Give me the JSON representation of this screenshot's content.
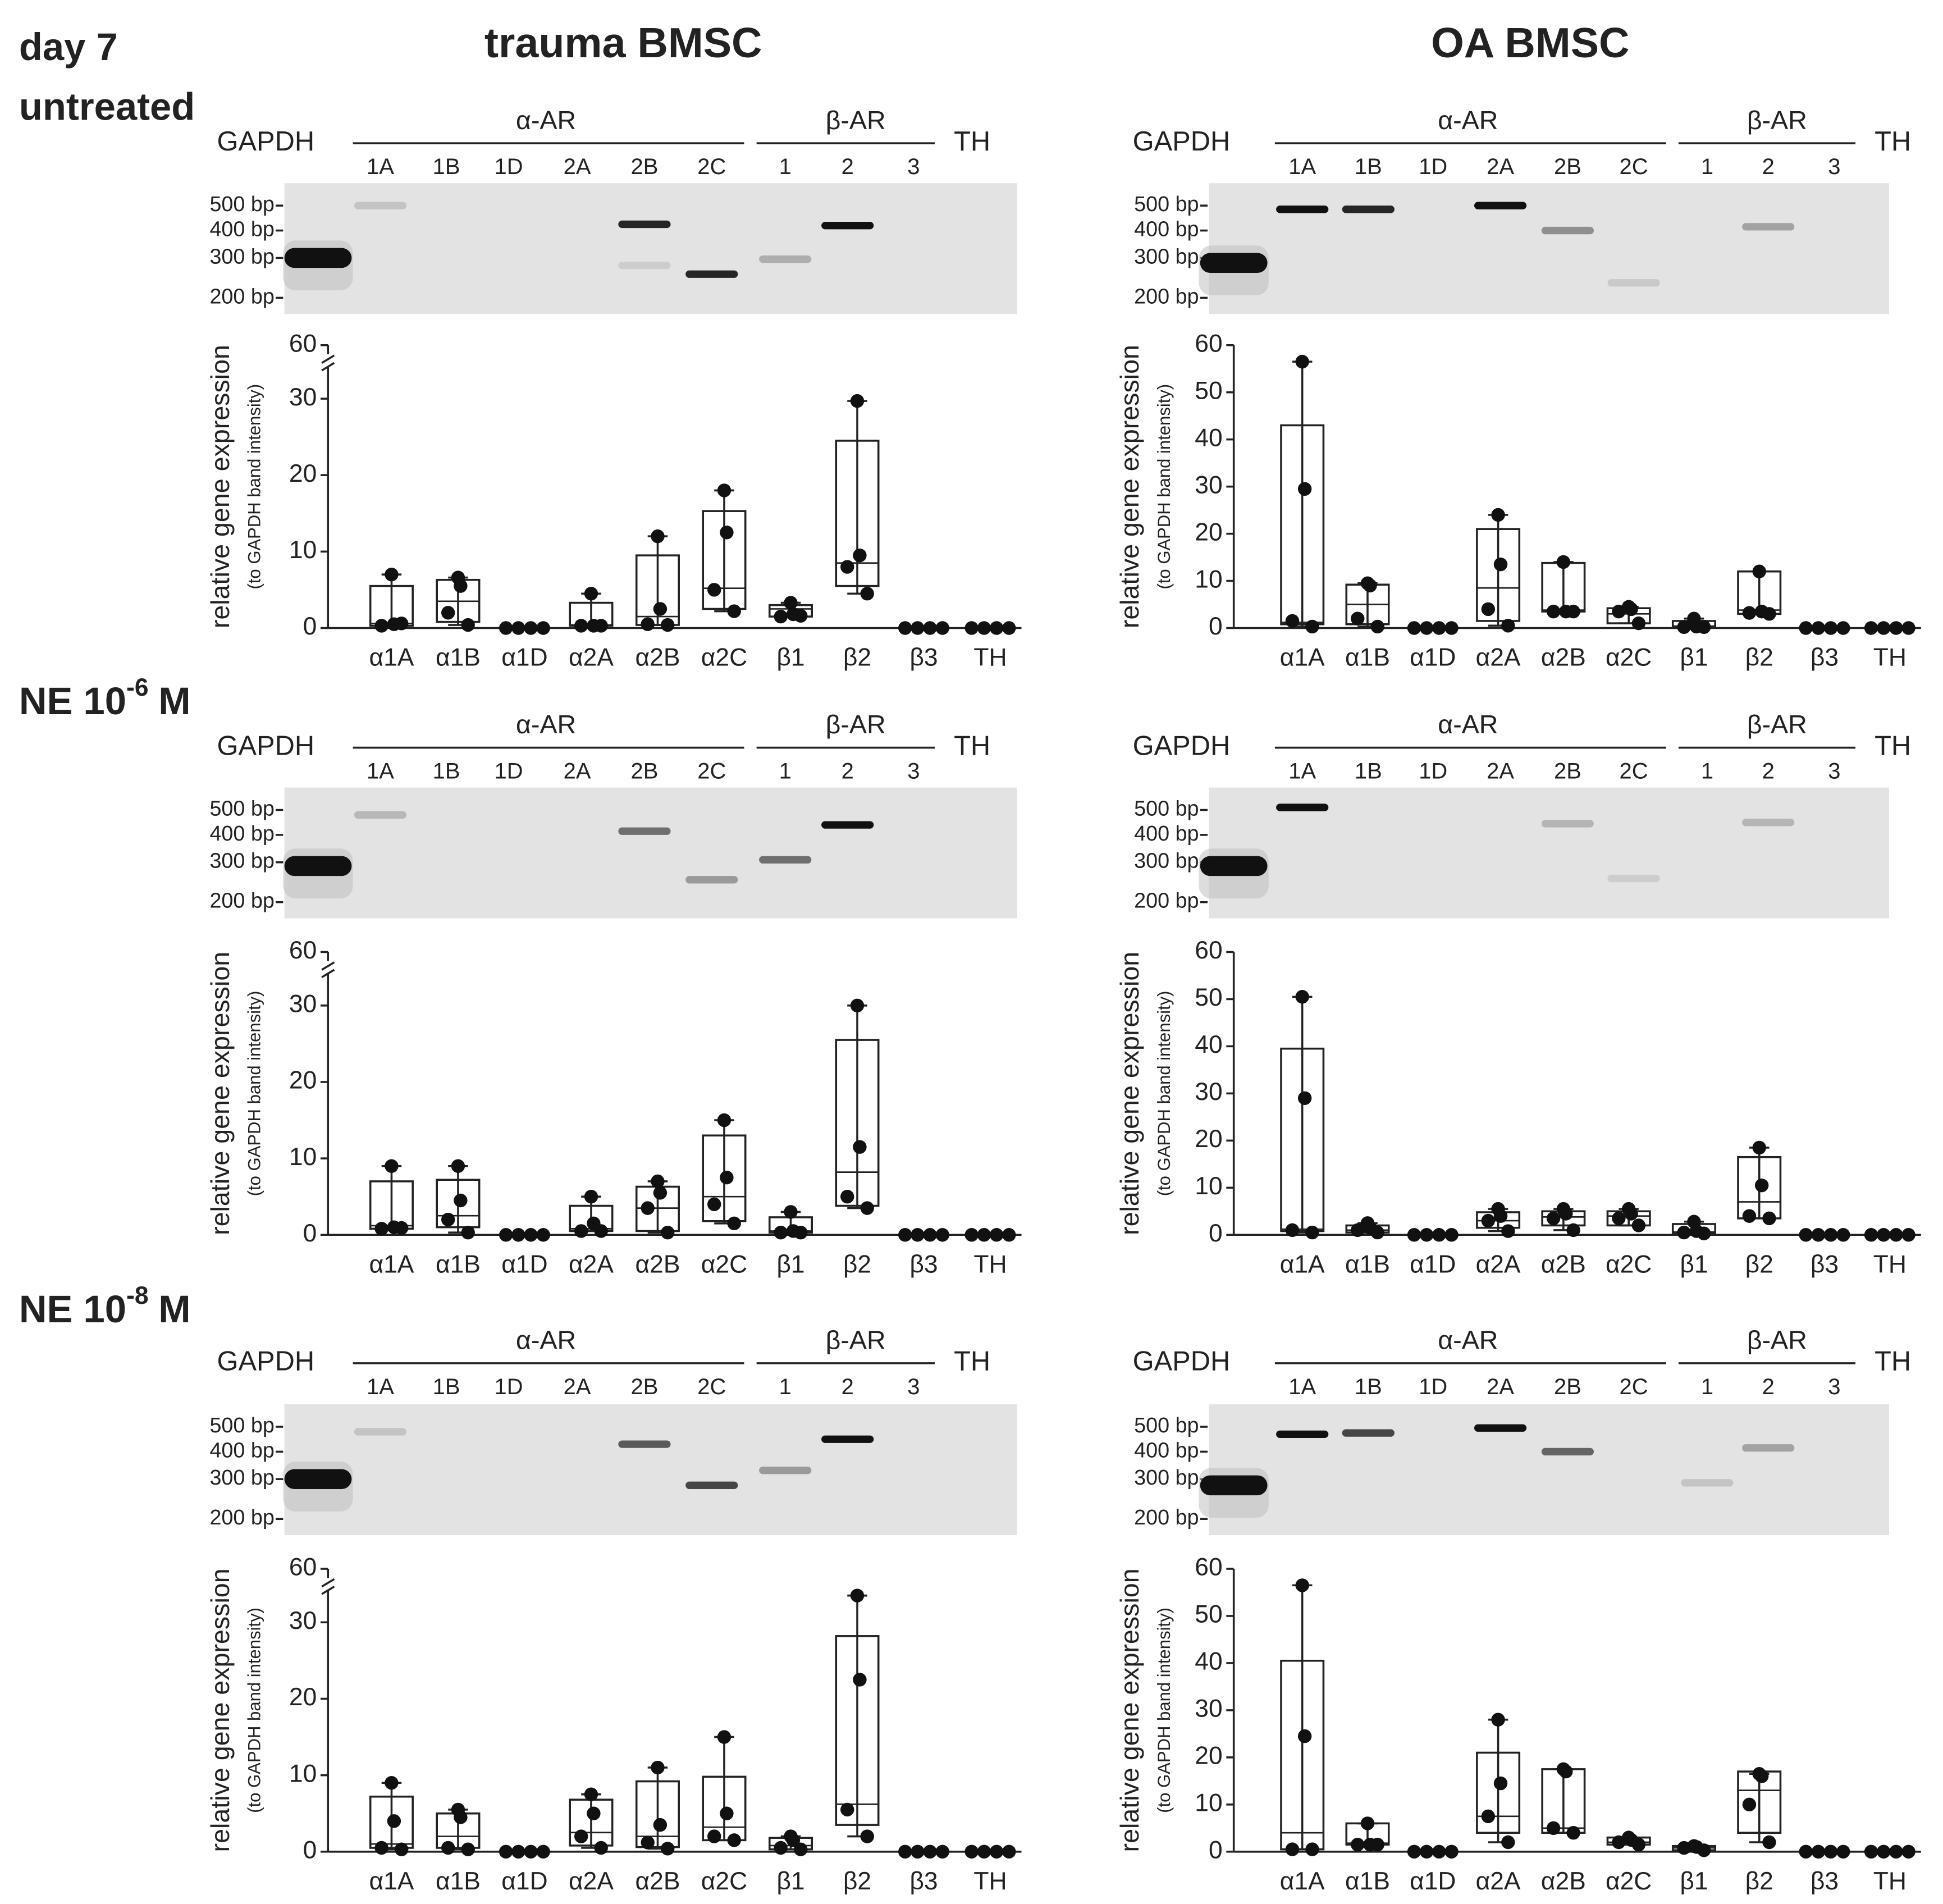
{
  "column_titles": [
    "trauma BMSC",
    "OA BMSC"
  ],
  "rows": [
    {
      "label": "day 7",
      "sublabel": "untreated"
    },
    {
      "label": "NE 10",
      "exponent": "-6",
      "unit": "M"
    },
    {
      "label": "NE 10",
      "exponent": "-8",
      "unit": "M"
    }
  ],
  "gel": {
    "marker": "GAPDH",
    "groups": [
      "α-AR",
      "β-AR",
      "TH"
    ],
    "lanes": [
      "1A",
      "1B",
      "1D",
      "2A",
      "2B",
      "2C",
      "1",
      "2",
      "3"
    ],
    "sizes": [
      "500 bp",
      "400 bp",
      "300 bp",
      "200 bp"
    ]
  },
  "chart_data": [
    {
      "type": "box",
      "ylabel": "relative gene expression",
      "ylabel_note": "(to GAPDH band intensity)",
      "categories": [
        "α1A",
        "α1B",
        "α1D",
        "α2A",
        "α2B",
        "α2C",
        "β1",
        "β2",
        "β3",
        "TH"
      ],
      "ylim": [
        0,
        37
      ],
      "yticks": [
        0,
        10,
        20,
        30
      ],
      "axis_break": 35,
      "break_tick": 60,
      "points": [
        [
          7,
          0.5,
          0.3,
          0.6
        ],
        [
          6.6,
          5.5,
          2,
          0.4
        ],
        [
          0,
          0,
          0,
          0
        ],
        [
          4.5,
          0.3,
          0.3,
          0.3
        ],
        [
          12,
          2.5,
          0.5,
          0.4
        ],
        [
          18,
          12.5,
          5,
          2.2
        ],
        [
          3.3,
          1.8,
          1.5,
          1.6
        ],
        [
          29.7,
          9.5,
          8,
          4.5
        ],
        [
          0,
          0,
          0,
          0
        ],
        [
          0,
          0,
          0,
          0
        ]
      ],
      "boxes": [
        [
          0.3,
          0.6,
          5.5
        ],
        [
          0.8,
          3.5,
          6.3
        ],
        [
          0,
          0,
          0
        ],
        [
          0.3,
          0.4,
          3.3
        ],
        [
          0.4,
          1.5,
          9.5
        ],
        [
          2.5,
          5.2,
          15.3
        ],
        [
          1.5,
          2.5,
          3
        ],
        [
          5.5,
          8.5,
          24.5
        ],
        [
          0,
          0,
          0
        ],
        [
          0,
          0,
          0
        ]
      ],
      "whiskers": [
        [
          0.3,
          7
        ],
        [
          0.4,
          6.6
        ],
        [
          0,
          0
        ],
        [
          0.3,
          4.5
        ],
        [
          0.4,
          12
        ],
        [
          2.2,
          18
        ],
        [
          1.5,
          3.3
        ],
        [
          4.5,
          29.7
        ],
        [
          0,
          0
        ],
        [
          0,
          0
        ]
      ]
    },
    {
      "type": "box",
      "ylabel": "relative gene expression",
      "ylabel_note": "(to GAPDH band intensity)",
      "categories": [
        "α1A",
        "α1B",
        "α1D",
        "α2A",
        "α2B",
        "α2C",
        "β1",
        "β2",
        "β3",
        "TH"
      ],
      "ylim": [
        0,
        60
      ],
      "yticks": [
        0,
        10,
        20,
        30,
        40,
        50,
        60
      ],
      "points": [
        [
          56.5,
          29.5,
          1.5,
          0.3
        ],
        [
          9.5,
          9,
          2,
          0.3
        ],
        [
          0,
          0,
          0,
          0
        ],
        [
          24,
          13.5,
          4,
          0.5
        ],
        [
          14,
          3.5,
          3.5,
          3.5
        ],
        [
          4.5,
          4,
          3.5,
          1
        ],
        [
          2,
          0.3,
          0.2,
          0.2
        ],
        [
          12,
          3.5,
          3.2,
          3
        ],
        [
          0,
          0,
          0,
          0
        ],
        [
          0,
          0,
          0,
          0
        ]
      ],
      "boxes": [
        [
          0.8,
          1.2,
          43
        ],
        [
          0.8,
          5,
          9.2
        ],
        [
          0,
          0,
          0
        ],
        [
          1.5,
          8.5,
          21
        ],
        [
          3.5,
          3.8,
          13.8
        ],
        [
          1,
          3,
          4.2
        ],
        [
          0.2,
          0.4,
          1.5
        ],
        [
          3,
          3.8,
          12
        ],
        [
          0,
          0,
          0
        ],
        [
          0,
          0,
          0
        ]
      ],
      "whiskers": [
        [
          0.3,
          56.5
        ],
        [
          0.3,
          9.5
        ],
        [
          0,
          0
        ],
        [
          0.5,
          24
        ],
        [
          3.5,
          14
        ],
        [
          1,
          4.5
        ],
        [
          0.2,
          2
        ],
        [
          3,
          12
        ],
        [
          0,
          0
        ],
        [
          0,
          0
        ]
      ]
    },
    {
      "type": "box",
      "ylabel": "relative gene expression",
      "ylabel_note": "(to GAPDH band intensity)",
      "categories": [
        "α1A",
        "α1B",
        "α1D",
        "α2A",
        "α2B",
        "α2C",
        "β1",
        "β2",
        "β3",
        "TH"
      ],
      "ylim": [
        0,
        37
      ],
      "yticks": [
        0,
        10,
        20,
        30
      ],
      "axis_break": 35,
      "break_tick": 60,
      "points": [
        [
          9,
          1,
          0.8,
          0.9
        ],
        [
          9,
          4.5,
          2,
          0.3
        ],
        [
          0,
          0,
          0,
          0
        ],
        [
          5,
          1.5,
          0.5,
          0.5
        ],
        [
          7,
          5.5,
          3.5,
          0.3
        ],
        [
          15,
          7.5,
          4,
          1.5
        ],
        [
          3,
          0.5,
          0.3,
          0.3
        ],
        [
          30,
          11.5,
          5,
          3.5
        ],
        [
          0,
          0,
          0,
          0
        ],
        [
          0,
          0,
          0,
          0
        ]
      ],
      "boxes": [
        [
          0.8,
          1.2,
          7
        ],
        [
          1,
          2.5,
          7.2
        ],
        [
          0,
          0,
          0
        ],
        [
          0.5,
          0.8,
          3.8
        ],
        [
          0.5,
          3.5,
          6.3
        ],
        [
          1.8,
          5,
          13
        ],
        [
          0.3,
          0.5,
          2.3
        ],
        [
          3.8,
          8.2,
          25.5
        ],
        [
          0,
          0,
          0
        ],
        [
          0,
          0,
          0
        ]
      ],
      "whiskers": [
        [
          0.8,
          9
        ],
        [
          0.3,
          9
        ],
        [
          0,
          0
        ],
        [
          0.5,
          5
        ],
        [
          0.3,
          7
        ],
        [
          1.5,
          15
        ],
        [
          0.3,
          3
        ],
        [
          3.5,
          30
        ],
        [
          0,
          0
        ],
        [
          0,
          0
        ]
      ]
    },
    {
      "type": "box",
      "ylabel": "relative gene expression",
      "ylabel_note": "(to GAPDH band intensity)",
      "categories": [
        "α1A",
        "α1B",
        "α1D",
        "α2A",
        "α2B",
        "α2C",
        "β1",
        "β2",
        "β3",
        "TH"
      ],
      "ylim": [
        0,
        60
      ],
      "yticks": [
        0,
        10,
        20,
        30,
        40,
        50,
        60
      ],
      "points": [
        [
          50.5,
          29,
          1,
          0.5
        ],
        [
          2.5,
          1.5,
          1,
          0.5
        ],
        [
          0,
          0,
          0,
          0
        ],
        [
          5.5,
          4,
          3,
          0.8
        ],
        [
          5.5,
          4.5,
          3.5,
          1
        ],
        [
          5.5,
          4.5,
          3.5,
          2
        ],
        [
          2.8,
          0.8,
          0.5,
          0.3
        ],
        [
          18.5,
          10.5,
          4,
          3.5
        ],
        [
          0,
          0,
          0,
          0
        ],
        [
          0,
          0,
          0,
          0
        ]
      ],
      "boxes": [
        [
          0.8,
          1.2,
          39.5
        ],
        [
          0.5,
          1,
          2
        ],
        [
          0,
          0,
          0
        ],
        [
          1.5,
          3,
          4.8
        ],
        [
          2,
          3.8,
          5
        ],
        [
          2,
          4,
          5
        ],
        [
          0.3,
          0.6,
          2.3
        ],
        [
          3.5,
          7,
          16.5
        ],
        [
          0,
          0,
          0
        ],
        [
          0,
          0,
          0
        ]
      ],
      "whiskers": [
        [
          0.5,
          50.5
        ],
        [
          0.5,
          2.5
        ],
        [
          0,
          0
        ],
        [
          0.8,
          5.5
        ],
        [
          1,
          5.5
        ],
        [
          2,
          5.5
        ],
        [
          0.3,
          2.8
        ],
        [
          3.5,
          18.5
        ],
        [
          0,
          0
        ],
        [
          0,
          0
        ]
      ]
    },
    {
      "type": "box",
      "ylabel": "relative gene expression",
      "ylabel_note": "(to GAPDH band intensity)",
      "categories": [
        "α1A",
        "α1B",
        "α1D",
        "α2A",
        "α2B",
        "α2C",
        "β1",
        "β2",
        "β3",
        "TH"
      ],
      "ylim": [
        0,
        37
      ],
      "yticks": [
        0,
        10,
        20,
        30
      ],
      "axis_break": 35,
      "break_tick": 60,
      "points": [
        [
          9,
          4,
          0.5,
          0.3
        ],
        [
          5.5,
          4.5,
          0.5,
          0.3
        ],
        [
          0,
          0,
          0,
          0
        ],
        [
          7.5,
          5,
          2,
          0.5
        ],
        [
          11,
          3.5,
          1.2,
          0.4
        ],
        [
          15,
          5,
          2,
          1.5
        ],
        [
          2,
          1.5,
          0.5,
          0.3
        ],
        [
          33.5,
          22.5,
          5.5,
          2
        ],
        [
          0,
          0,
          0,
          0
        ],
        [
          0,
          0,
          0,
          0
        ]
      ],
      "boxes": [
        [
          0.5,
          1,
          7.2
        ],
        [
          0.5,
          2,
          5
        ],
        [
          0,
          0,
          0
        ],
        [
          0.8,
          2.5,
          6.8
        ],
        [
          0.6,
          2,
          9.2
        ],
        [
          1.5,
          3.2,
          9.8
        ],
        [
          0.3,
          0.8,
          1.8
        ],
        [
          3.5,
          6.2,
          28.2
        ],
        [
          0,
          0,
          0
        ],
        [
          0,
          0,
          0
        ]
      ],
      "whiskers": [
        [
          0.3,
          9
        ],
        [
          0.3,
          5.5
        ],
        [
          0,
          0
        ],
        [
          0.5,
          7.5
        ],
        [
          0.4,
          11
        ],
        [
          1.5,
          15
        ],
        [
          0.3,
          2
        ],
        [
          2,
          33.5
        ],
        [
          0,
          0
        ],
        [
          0,
          0
        ]
      ]
    },
    {
      "type": "box",
      "ylabel": "relative gene expression",
      "ylabel_note": "(to GAPDH band intensity)",
      "categories": [
        "α1A",
        "α1B",
        "α1D",
        "α2A",
        "α2B",
        "α2C",
        "β1",
        "β2",
        "β3",
        "TH"
      ],
      "ylim": [
        0,
        60
      ],
      "yticks": [
        0,
        10,
        20,
        30,
        40,
        50,
        60
      ],
      "points": [
        [
          56.5,
          24.5,
          0.5,
          0.5
        ],
        [
          6,
          1.5,
          1.5,
          1.5
        ],
        [
          0,
          0,
          0,
          0
        ],
        [
          28,
          14.5,
          7.5,
          2
        ],
        [
          17.5,
          17,
          5,
          4
        ],
        [
          3,
          2.5,
          2,
          1.5
        ],
        [
          1.2,
          1,
          0.8,
          0.3
        ],
        [
          16.5,
          16,
          10,
          2
        ],
        [
          0,
          0,
          0,
          0
        ],
        [
          0,
          0,
          0,
          0
        ]
      ],
      "boxes": [
        [
          0.5,
          4,
          40.5
        ],
        [
          1.5,
          1.8,
          6
        ],
        [
          0,
          0,
          0
        ],
        [
          4,
          7.5,
          21
        ],
        [
          4,
          5,
          17.5
        ],
        [
          1.5,
          2,
          3
        ],
        [
          0.3,
          0.8,
          1.2
        ],
        [
          4,
          13,
          17
        ],
        [
          0,
          0,
          0
        ],
        [
          0,
          0,
          0
        ]
      ],
      "whiskers": [
        [
          0.5,
          56.5
        ],
        [
          1.5,
          6
        ],
        [
          0,
          0
        ],
        [
          2,
          28
        ],
        [
          4,
          17.5
        ],
        [
          1.5,
          3
        ],
        [
          0.3,
          1.2
        ],
        [
          2,
          16.5
        ],
        [
          0,
          0
        ],
        [
          0,
          0
        ]
      ]
    }
  ]
}
